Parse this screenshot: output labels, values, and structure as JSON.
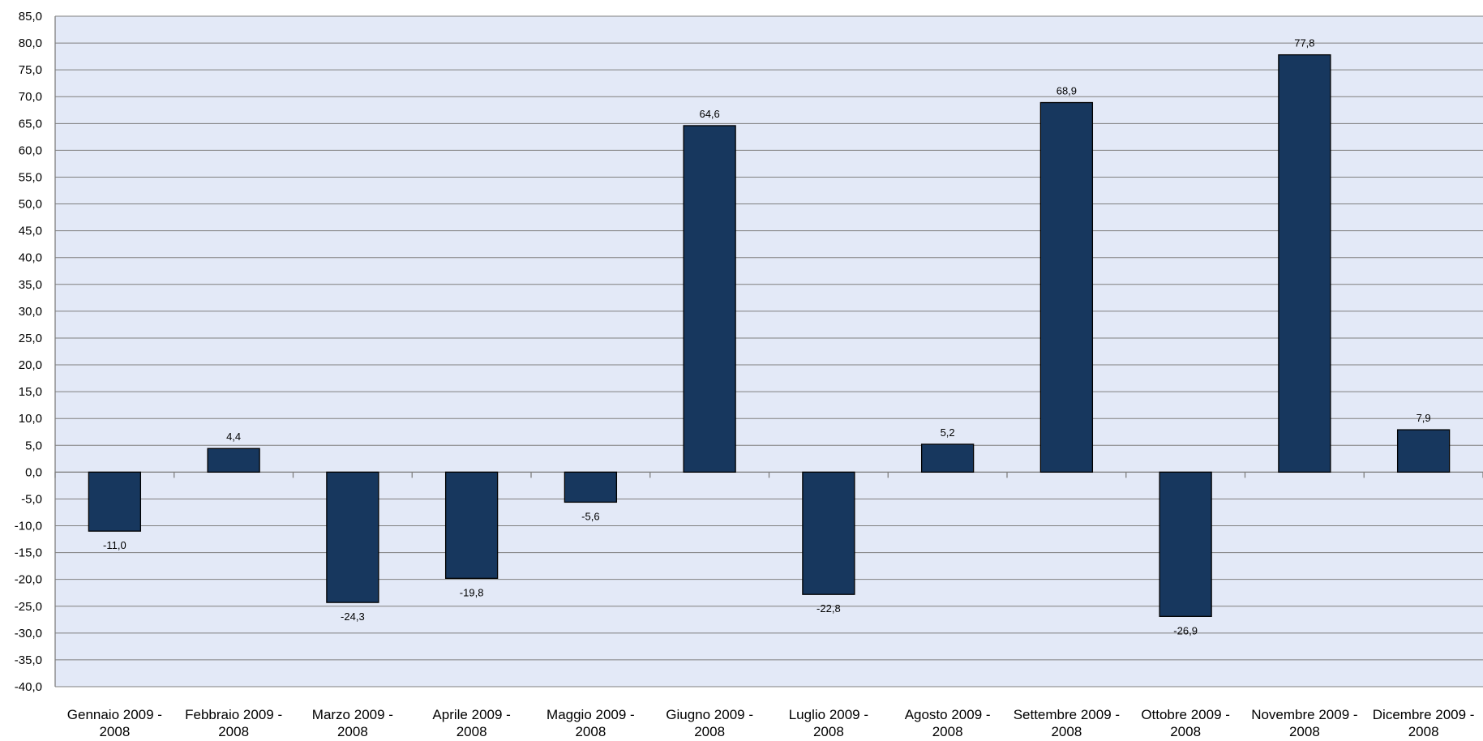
{
  "chart_data": {
    "type": "bar",
    "title": "",
    "xlabel": "",
    "ylabel": "",
    "categories": [
      [
        "Gennaio 2009 -",
        "2008"
      ],
      [
        "Febbraio 2009 -",
        "2008"
      ],
      [
        "Marzo 2009 -",
        "2008"
      ],
      [
        "Aprile 2009 -",
        "2008"
      ],
      [
        "Maggio 2009 -",
        "2008"
      ],
      [
        "Giugno 2009 -",
        "2008"
      ],
      [
        "Luglio 2009 -",
        "2008"
      ],
      [
        "Agosto 2009 -",
        "2008"
      ],
      [
        "Settembre 2009 -",
        "2008"
      ],
      [
        "Ottobre 2009 -",
        "2008"
      ],
      [
        "Novembre 2009 -",
        "2008"
      ],
      [
        "Dicembre 2009 -",
        "2008"
      ]
    ],
    "values": [
      -11.0,
      4.4,
      -24.3,
      -19.8,
      -5.6,
      64.6,
      -22.8,
      5.2,
      68.9,
      -26.9,
      77.8,
      7.9
    ],
    "value_labels": [
      "-11,0",
      "4,4",
      "-24,3",
      "-19,8",
      "-5,6",
      "64,6",
      "-22,8",
      "5,2",
      "68,9",
      "-26,9",
      "77,8",
      "7,9"
    ],
    "ylim": [
      -40,
      85
    ],
    "ytick_step": 5,
    "ytick_labels": [
      "85,0",
      "80,0",
      "75,0",
      "70,0",
      "65,0",
      "60,0",
      "55,0",
      "50,0",
      "45,0",
      "40,0",
      "35,0",
      "30,0",
      "25,0",
      "20,0",
      "15,0",
      "10,0",
      "5,0",
      "0,0",
      "-5,0",
      "-10,0",
      "-15,0",
      "-20,0",
      "-25,0",
      "-30,0",
      "-35,0",
      "-40,0"
    ],
    "grid": true,
    "legend": "none",
    "colors": {
      "plot_background": "#e3e9f7",
      "bar_fill": "#17375e",
      "bar_stroke": "#000000",
      "gridline": "#7f7f7f"
    }
  }
}
